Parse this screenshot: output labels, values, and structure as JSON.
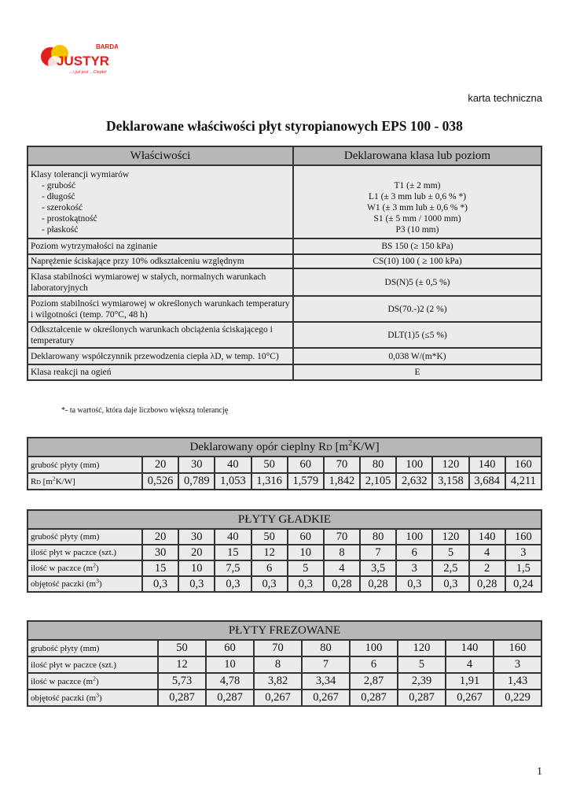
{
  "logo": {
    "brand_top": "BARDA",
    "brand": "JUSTYR",
    "slogan": "...i już jest ...Ciepło!",
    "colors": {
      "red": "#e0201c",
      "yellow": "#f5c400"
    }
  },
  "header": {
    "doc_type": "karta techniczna",
    "title": "Deklarowane właściwości płyt styropianowych EPS 100 - 038"
  },
  "properties": {
    "col_headers": [
      "Właściwości",
      "Deklarowana klasa lub poziom"
    ],
    "rows": [
      {
        "label": [
          "Klasy tolerancji wymiarów",
          "- grubość",
          "- długość",
          "- szerokość",
          "- prostokątność",
          "- płaskość"
        ],
        "value": [
          "T1  (± 2 mm)",
          "L1  (± 3 mm lub ± 0,6 % *)",
          "W1  (± 3 mm lub ± 0,6 % *)",
          "S1  (± 5 mm / 1000 mm)",
          "P3  (10 mm)"
        ]
      },
      {
        "label": [
          "Poziom wytrzymałości na zginanie"
        ],
        "value": [
          "BS 150 (≥ 150 kPa)"
        ]
      },
      {
        "label": [
          "Naprężenie ściskające przy 10% odkształceniu względnym"
        ],
        "value": [
          "CS(10) 100 ( ≥ 100 kPa)"
        ]
      },
      {
        "label": [
          "Klasa stabilności wymiarowej w stałych, normalnych warunkach laboratoryjnych"
        ],
        "value": [
          "DS(N)5 (± 0,5 %)"
        ]
      },
      {
        "label": [
          "Poziom stabilności wymiarowej w określonych warunkach temperatury i wilgotności (temp. 70°C, 48 h)"
        ],
        "value": [
          "DS(70.-)2 (2 %)"
        ]
      },
      {
        "label": [
          "Odkształcenie w określonych warunkach obciążenia ściskającego i temperatury"
        ],
        "value": [
          "DLT(1)5 (≤5 %)"
        ]
      },
      {
        "label": [
          "Deklarowany współczynnik przewodzenia ciepła λD, w temp. 10°C)"
        ],
        "value": [
          "0,038 W/(m*K)"
        ]
      },
      {
        "label": [
          "Klasa reakcji na ogień"
        ],
        "value": [
          "E"
        ]
      }
    ],
    "footnote": "*- ta wartość, która daje liczbowo większą tolerancję"
  },
  "resistance": {
    "title": {
      "pre": "Deklarowany opór cieplny R",
      "sub": "D",
      "post": " [m",
      "sup": "2",
      "post2": "K/W]"
    },
    "rows": [
      {
        "label": {
          "pre": "grubość płyty (mm)"
        },
        "values": [
          "20",
          "30",
          "40",
          "50",
          "60",
          "70",
          "80",
          "100",
          "120",
          "140",
          "160"
        ]
      },
      {
        "label": {
          "pre": "R",
          "sub": "D",
          "post": " [m",
          "sup": "2",
          "post2": "K/W]"
        },
        "values": [
          "0,526",
          "0,789",
          "1,053",
          "1,316",
          "1,579",
          "1,842",
          "2,105",
          "2,632",
          "3,158",
          "3,684",
          "4,211"
        ]
      }
    ]
  },
  "smooth": {
    "title": {
      "pre": "PŁYTY GŁADKIE"
    },
    "rows": [
      {
        "label": {
          "pre": "grubość płyty (mm)"
        },
        "values": [
          "20",
          "30",
          "40",
          "50",
          "60",
          "70",
          "80",
          "100",
          "120",
          "140",
          "160"
        ]
      },
      {
        "label": {
          "pre": "ilość płyt w paczce (szt.)"
        },
        "values": [
          "30",
          "20",
          "15",
          "12",
          "10",
          "8",
          "7",
          "6",
          "5",
          "4",
          "3"
        ]
      },
      {
        "label": {
          "pre": "ilość w paczce (m",
          "sup": "2",
          "post2": ")"
        },
        "values": [
          "15",
          "10",
          "7,5",
          "6",
          "5",
          "4",
          "3,5",
          "3",
          "2,5",
          "2",
          "1,5"
        ]
      },
      {
        "label": {
          "pre": "objętość paczki (m",
          "sup": "3",
          "post2": ")"
        },
        "values": [
          "0,3",
          "0,3",
          "0,3",
          "0,3",
          "0,3",
          "0,28",
          "0,28",
          "0,3",
          "0,3",
          "0,28",
          "0,24"
        ]
      }
    ]
  },
  "milled": {
    "title": {
      "pre": "PŁYTY FREZOWANE"
    },
    "rows": [
      {
        "label": {
          "pre": "grubość płyty (mm)"
        },
        "values": [
          "50",
          "60",
          "70",
          "80",
          "100",
          "120",
          "140",
          "160"
        ]
      },
      {
        "label": {
          "pre": "ilość płyt w paczce (szt.)"
        },
        "values": [
          "12",
          "10",
          "8",
          "7",
          "6",
          "5",
          "4",
          "3"
        ]
      },
      {
        "label": {
          "pre": "ilość w paczce (m",
          "sup": "2",
          "post2": ")"
        },
        "values": [
          "5,73",
          "4,78",
          "3,82",
          "3,34",
          "2,87",
          "2,39",
          "1,91",
          "1,43"
        ]
      },
      {
        "label": {
          "pre": "objętość paczki (m",
          "sup": "3",
          "post2": ")"
        },
        "values": [
          "0,287",
          "0,287",
          "0,267",
          "0,267",
          "0,287",
          "0,287",
          "0,267",
          "0,229"
        ]
      }
    ]
  },
  "page_number": "1"
}
